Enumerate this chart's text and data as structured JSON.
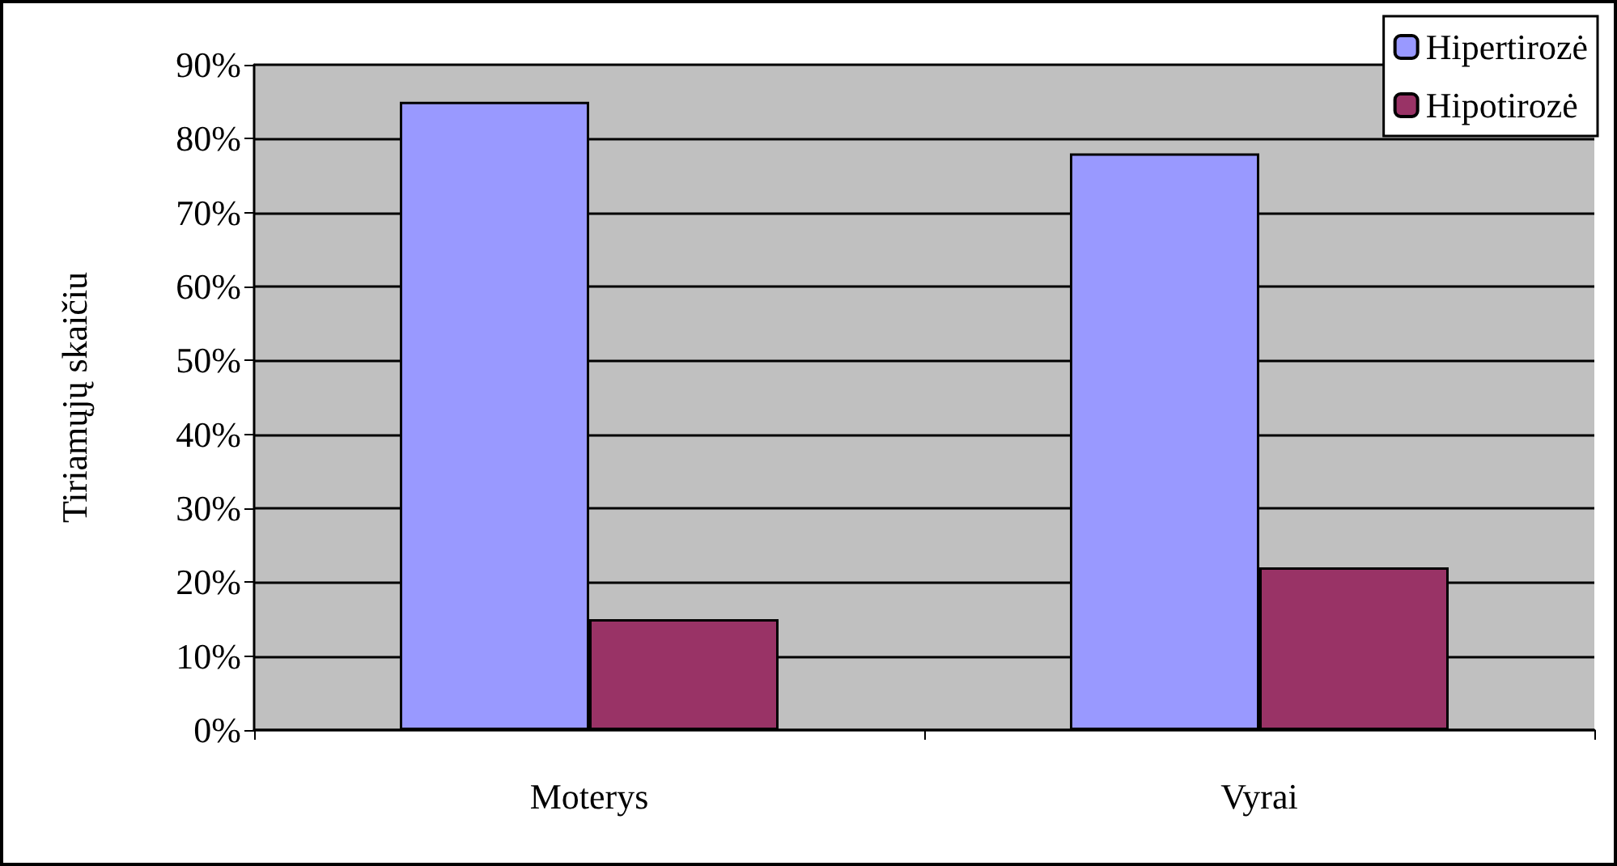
{
  "chart_data": {
    "type": "bar",
    "ylabel": "Tiriamųjų skaičiu",
    "categories": [
      "Moterys",
      "Vyrai"
    ],
    "series": [
      {
        "name": "Hipertirozė",
        "color": "#9999ff",
        "values": [
          85,
          78
        ]
      },
      {
        "name": "Hipotirozė",
        "color": "#993366",
        "values": [
          15,
          22
        ]
      }
    ],
    "ylim": [
      0,
      90
    ],
    "yticks": [
      {
        "value": 0,
        "label": "0%"
      },
      {
        "value": 10,
        "label": "10%"
      },
      {
        "value": 20,
        "label": "20%"
      },
      {
        "value": 30,
        "label": "30%"
      },
      {
        "value": 40,
        "label": "40%"
      },
      {
        "value": 50,
        "label": "50%"
      },
      {
        "value": 60,
        "label": "60%"
      },
      {
        "value": 70,
        "label": "70%"
      },
      {
        "value": 80,
        "label": "80%"
      },
      {
        "value": 90,
        "label": "90%"
      }
    ],
    "grid": true,
    "legend": "top right"
  }
}
